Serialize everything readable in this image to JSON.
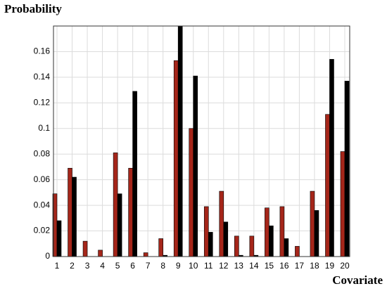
{
  "chart_data": {
    "type": "bar",
    "y_label": "Probability",
    "x_label": "Covariate",
    "categories": [
      "1",
      "2",
      "3",
      "4",
      "5",
      "6",
      "7",
      "8",
      "9",
      "10",
      "11",
      "12",
      "13",
      "14",
      "15",
      "16",
      "17",
      "18",
      "19",
      "20"
    ],
    "series": [
      {
        "color": "#a5261a",
        "values": [
          0.049,
          0.069,
          0.012,
          0.005,
          0.081,
          0.069,
          0.003,
          0.014,
          0.153,
          0.1,
          0.039,
          0.051,
          0.016,
          0.016,
          0.038,
          0.039,
          0.008,
          0.051,
          0.111,
          0.082
        ]
      },
      {
        "color": "#000000",
        "values": [
          0.028,
          0.062,
          0,
          0,
          0.049,
          0.129,
          0,
          0.001,
          0.18,
          0.141,
          0.019,
          0.027,
          0.001,
          0.001,
          0.024,
          0.014,
          0,
          0.036,
          0.154,
          0.137
        ]
      }
    ],
    "ylim": [
      0,
      0.18
    ],
    "yticks": [
      0,
      0.02,
      0.04,
      0.06,
      0.08,
      0.1,
      0.12,
      0.14,
      0.16
    ],
    "grid": true
  }
}
